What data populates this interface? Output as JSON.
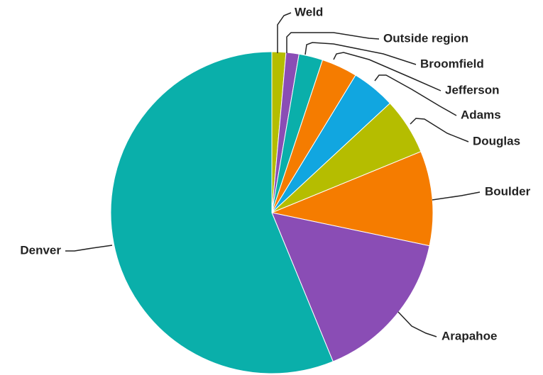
{
  "chart_data": {
    "type": "pie",
    "title": "",
    "start_angle_deg": 0,
    "direction": "clockwise",
    "slices": [
      {
        "label": "Weld",
        "value": 1.4,
        "color": "#b5bd00"
      },
      {
        "label": "Outside region",
        "value": 1.3,
        "color": "#8a4db5"
      },
      {
        "label": "Broomfield",
        "value": 2.4,
        "color": "#0aafaa"
      },
      {
        "label": "Jefferson",
        "value": 3.6,
        "color": "#f57c00"
      },
      {
        "label": "Adams",
        "value": 4.4,
        "color": "#11a6e0"
      },
      {
        "label": "Douglas",
        "value": 5.7,
        "color": "#b5bd00"
      },
      {
        "label": "Boulder",
        "value": 9.5,
        "color": "#f57c00"
      },
      {
        "label": "Arapahoe",
        "value": 15.5,
        "color": "#8a4db5"
      },
      {
        "label": "Denver",
        "value": 56.2,
        "color": "#0aafaa"
      }
    ]
  }
}
